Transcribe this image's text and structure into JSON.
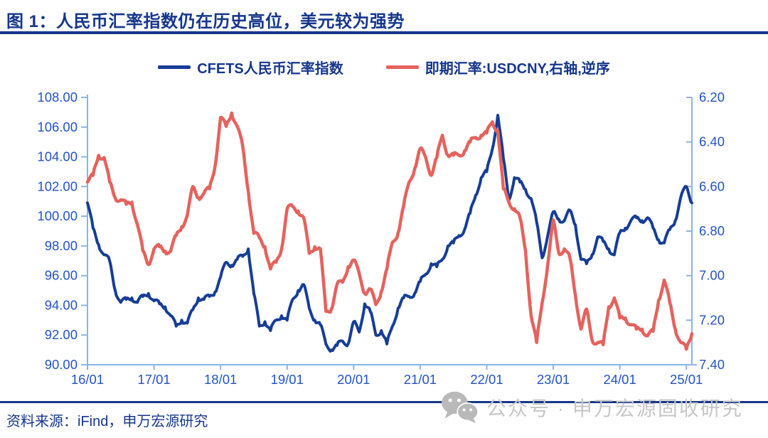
{
  "figure": {
    "title": "图 1：人民币汇率指数仍在历史高位，美元较为强势",
    "source": "资料来源：iFind，申万宏源研究",
    "watermark": "公众号 · 申万宏源固收研究"
  },
  "colors": {
    "title_navy": "#16368c",
    "cfets_line": "#163d96",
    "usdcny_line": "#e5625d",
    "axis_text": "#2353c4",
    "axis_line": "#8ab4e4",
    "watermark_gray": "#c7c7c7",
    "watermark_icon_gray": "#b9b9b9"
  },
  "legend": [
    {
      "label": "CFETS人民币汇率指数",
      "color": "#163d96"
    },
    {
      "label": "即期汇率:USDCNY,右轴,逆序",
      "color": "#e5625d"
    }
  ],
  "chart_data": {
    "type": "line",
    "title": "",
    "grid": false,
    "legend_position": "top-center",
    "x_freq": "monthly",
    "x_start": "2016-01",
    "x_end": "2025-02",
    "x_tick_labels": [
      "16/01",
      "17/01",
      "18/01",
      "19/01",
      "20/01",
      "21/01",
      "22/01",
      "23/01",
      "24/01",
      "25/01"
    ],
    "x_tick_every_points": 12,
    "left_axis": {
      "min": 90,
      "max": 108,
      "tick_labels": [
        "108.00",
        "106.00",
        "104.00",
        "102.00",
        "100.00",
        "98.00",
        "96.00",
        "94.00",
        "92.00",
        "90.00"
      ]
    },
    "right_axis": {
      "min": 6.2,
      "max": 7.4,
      "inverted": true,
      "tick_labels": [
        "6.20",
        "6.40",
        "6.60",
        "6.80",
        "7.00",
        "7.20",
        "7.40"
      ]
    },
    "series": [
      {
        "name": "CFETS人民币汇率指数",
        "axis": "left",
        "color": "#163d96",
        "values": [
          100.9,
          99.2,
          98.1,
          97.4,
          97.0,
          95.0,
          94.2,
          94.4,
          94.5,
          94.2,
          94.6,
          94.8,
          94.3,
          94.1,
          93.9,
          93.3,
          92.6,
          93.0,
          92.8,
          93.7,
          94.5,
          94.4,
          94.6,
          94.9,
          95.9,
          96.9,
          96.7,
          97.1,
          97.3,
          97.8,
          94.8,
          92.6,
          92.9,
          92.3,
          93.0,
          93.3,
          93.0,
          94.4,
          95.0,
          95.4,
          93.8,
          93.0,
          92.7,
          91.4,
          91.0,
          91.3,
          91.6,
          91.4,
          92.9,
          92.2,
          94.1,
          93.6,
          92.0,
          92.3,
          91.4,
          92.6,
          93.8,
          94.5,
          94.6,
          94.8,
          95.6,
          96.1,
          96.8,
          96.6,
          97.1,
          98.0,
          98.2,
          98.7,
          99.1,
          100.2,
          101.4,
          102.6,
          103.0,
          104.5,
          106.8,
          103.9,
          101.1,
          102.6,
          102.3,
          101.8,
          101.2,
          99.6,
          97.2,
          98.7,
          100.3,
          99.8,
          99.7,
          100.4,
          99.4,
          97.1,
          96.8,
          97.4,
          98.6,
          98.3,
          97.8,
          97.4,
          98.9,
          99.2,
          99.7,
          99.9,
          99.7,
          99.9,
          99.2,
          98.4,
          98.2,
          99.1,
          99.7,
          101.3,
          102.0,
          100.9
        ]
      },
      {
        "name": "即期汇率:USDCNY,右轴,逆序",
        "axis": "right",
        "color": "#e5625d",
        "values": [
          6.58,
          6.55,
          6.46,
          6.47,
          6.58,
          6.65,
          6.66,
          6.68,
          6.67,
          6.77,
          6.89,
          6.95,
          6.88,
          6.87,
          6.89,
          6.89,
          6.82,
          6.78,
          6.73,
          6.6,
          6.65,
          6.63,
          6.61,
          6.51,
          6.29,
          6.33,
          6.27,
          6.33,
          6.42,
          6.62,
          6.81,
          6.83,
          6.87,
          6.97,
          6.94,
          6.88,
          6.7,
          6.69,
          6.71,
          6.74,
          6.9,
          6.87,
          6.88,
          7.16,
          7.15,
          7.04,
          7.03,
          6.96,
          6.93,
          6.99,
          7.08,
          7.06,
          7.13,
          7.07,
          6.97,
          6.85,
          6.81,
          6.69,
          6.58,
          6.52,
          6.43,
          6.47,
          6.55,
          6.47,
          6.37,
          6.46,
          6.46,
          6.46,
          6.44,
          6.4,
          6.38,
          6.37,
          6.36,
          6.31,
          6.35,
          6.61,
          6.67,
          6.7,
          6.74,
          6.89,
          7.18,
          7.3,
          7.12,
          6.95,
          6.75,
          6.9,
          6.88,
          6.92,
          7.09,
          7.24,
          7.15,
          7.29,
          7.3,
          7.31,
          7.14,
          7.1,
          7.19,
          7.19,
          7.22,
          7.24,
          7.24,
          7.27,
          7.25,
          7.11,
          7.02,
          7.12,
          7.24,
          7.3,
          7.33,
          7.26
        ]
      }
    ]
  }
}
